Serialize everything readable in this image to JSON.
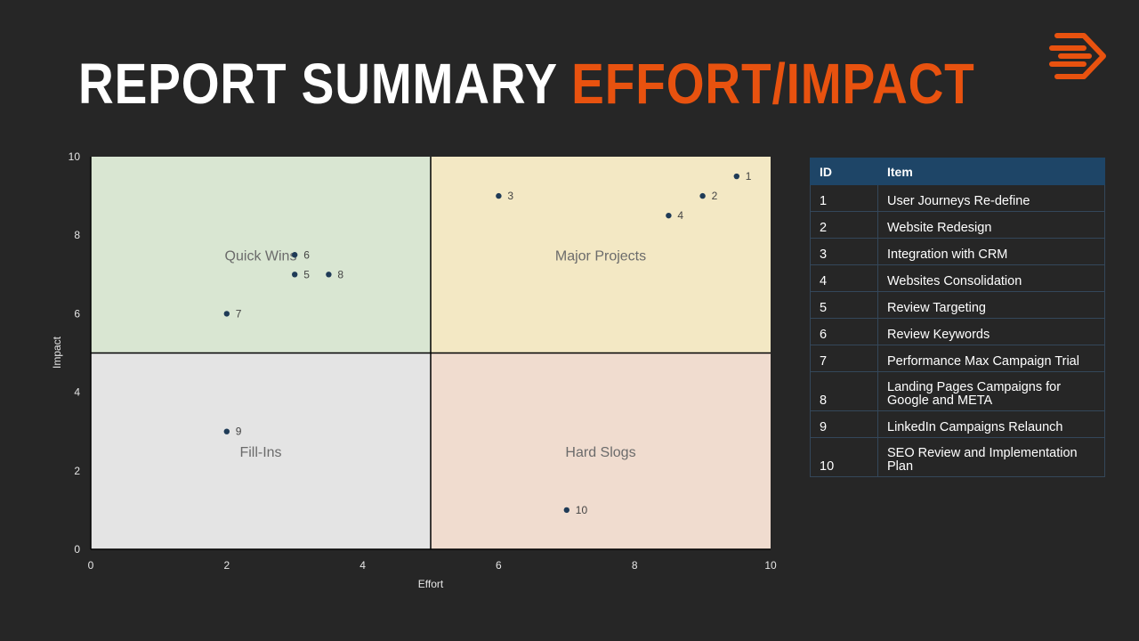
{
  "title": {
    "part1": "REPORT SUMMARY",
    "part2": "EFFORT/IMPACT"
  },
  "colors": {
    "accent": "#e8520f",
    "quick_wins": "#d9e6d2",
    "major_projects": "#f3e8c4",
    "fill_ins": "#e4e4e4",
    "hard_slogs": "#f0dccf",
    "point": "#1f3b57",
    "table_header": "#1e4567"
  },
  "logo": {
    "icon": "stream-arrow-logo-icon"
  },
  "chart_data": {
    "type": "scatter",
    "xlabel": "Effort",
    "ylabel": "Impact",
    "xlim": [
      0,
      10
    ],
    "ylim": [
      0,
      10
    ],
    "xticks": [
      0,
      2,
      4,
      6,
      8,
      10
    ],
    "yticks": [
      0,
      2,
      4,
      6,
      8,
      10
    ],
    "quadrants": [
      {
        "label": "Quick Wins",
        "x_range": [
          0,
          5
        ],
        "y_range": [
          5,
          10
        ],
        "color_key": "quick_wins",
        "label_at": [
          2.5,
          7.5
        ]
      },
      {
        "label": "Major Projects",
        "x_range": [
          5,
          10
        ],
        "y_range": [
          5,
          10
        ],
        "color_key": "major_projects",
        "label_at": [
          7.5,
          7.5
        ]
      },
      {
        "label": "Fill-Ins",
        "x_range": [
          0,
          5
        ],
        "y_range": [
          0,
          5
        ],
        "color_key": "fill_ins",
        "label_at": [
          2.5,
          2.5
        ]
      },
      {
        "label": "Hard Slogs",
        "x_range": [
          5,
          10
        ],
        "y_range": [
          0,
          5
        ],
        "color_key": "hard_slogs",
        "label_at": [
          7.5,
          2.5
        ]
      }
    ],
    "points": [
      {
        "id": "1",
        "x": 9.5,
        "y": 9.5
      },
      {
        "id": "2",
        "x": 9,
        "y": 9
      },
      {
        "id": "3",
        "x": 6,
        "y": 9
      },
      {
        "id": "4",
        "x": 8.5,
        "y": 8.5
      },
      {
        "id": "5",
        "x": 3,
        "y": 7
      },
      {
        "id": "6",
        "x": 3,
        "y": 7.5
      },
      {
        "id": "7",
        "x": 2,
        "y": 6
      },
      {
        "id": "8",
        "x": 3.5,
        "y": 7
      },
      {
        "id": "9",
        "x": 2,
        "y": 3
      },
      {
        "id": "10",
        "x": 7,
        "y": 1
      }
    ]
  },
  "table": {
    "headers": [
      "ID",
      "Item"
    ],
    "rows": [
      {
        "id": "1",
        "item": "User Journeys  Re-define"
      },
      {
        "id": "2",
        "item": "Website Redesign"
      },
      {
        "id": "3",
        "item": "Integration with CRM"
      },
      {
        "id": "4",
        "item": "Websites Consolidation"
      },
      {
        "id": "5",
        "item": "Review Targeting"
      },
      {
        "id": "6",
        "item": "Review Keywords"
      },
      {
        "id": "7",
        "item": "Performance Max Campaign Trial"
      },
      {
        "id": "8",
        "item": "Landing Pages Campaigns for Google and META"
      },
      {
        "id": "9",
        "item": "LinkedIn Campaigns Relaunch"
      },
      {
        "id": "10",
        "item": "SEO Review and Implementation Plan"
      }
    ]
  }
}
